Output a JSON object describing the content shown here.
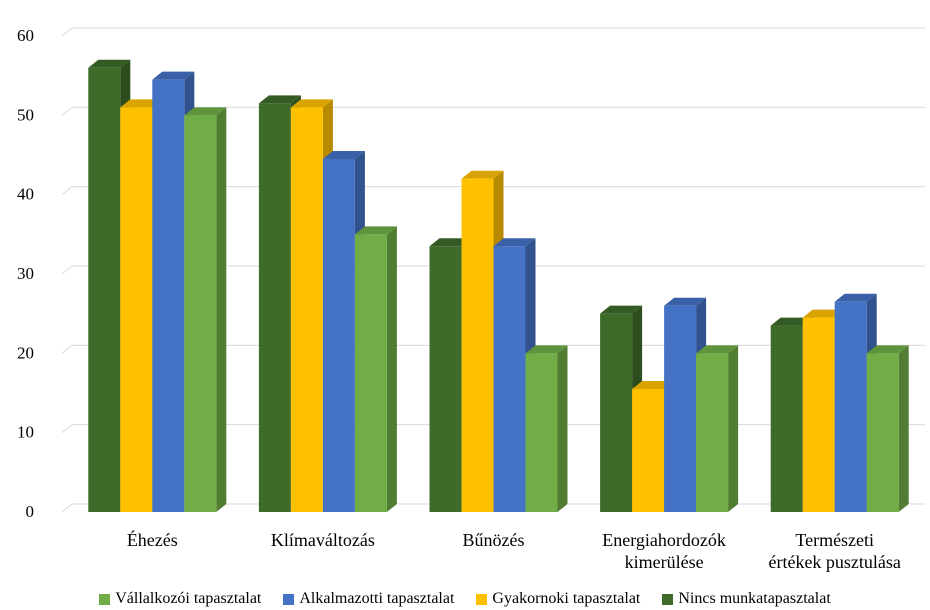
{
  "chart_data": {
    "type": "bar",
    "style": "3d-clustered-column",
    "title": "",
    "xlabel": "",
    "ylabel": "",
    "ylim": [
      0,
      60
    ],
    "yticks": [
      0,
      10,
      20,
      30,
      40,
      50,
      60
    ],
    "grid": true,
    "legend_position": "bottom",
    "categories": [
      [
        "Éhezés"
      ],
      [
        "Klímaváltozás"
      ],
      [
        "Bűnözés"
      ],
      [
        "Energiahordozók",
        "kimerülése"
      ],
      [
        "Természeti",
        "értékek pusztulása"
      ]
    ],
    "series": [
      {
        "name": "Nincs munkatapasztalat",
        "color": "#3E6B2A",
        "values": [
          56,
          51.5,
          33.5,
          25,
          23.5
        ]
      },
      {
        "name": "Gyakornoki tapasztalat",
        "color": "#FFC000",
        "values": [
          51,
          51,
          42,
          15.5,
          24.5
        ]
      },
      {
        "name": "Alkalmazotti tapasztalat",
        "color": "#4472C4",
        "values": [
          54.5,
          44.5,
          33.5,
          26,
          26.5
        ]
      },
      {
        "name": "Vállalkozói tapasztalat",
        "color": "#70AD47",
        "values": [
          50,
          35,
          20,
          20,
          20
        ]
      }
    ],
    "legend_order": [
      3,
      2,
      1,
      0
    ]
  },
  "legend": {
    "items": [
      {
        "label": "Vállalkozói tapasztalat",
        "color": "#70AD47"
      },
      {
        "label": "Alkalmazotti tapasztalat",
        "color": "#4472C4"
      },
      {
        "label": "Gyakornoki tapasztalat",
        "color": "#FFC000"
      },
      {
        "label": "Nincs munkatapasztalat",
        "color": "#3E6B2A"
      }
    ]
  }
}
